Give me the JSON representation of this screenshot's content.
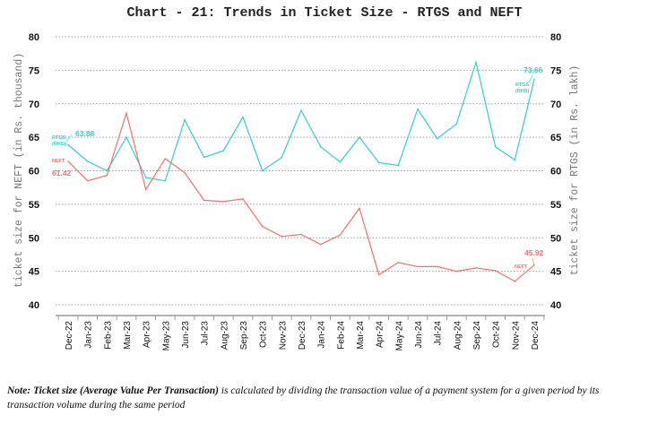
{
  "chart_data": {
    "type": "line",
    "title": "Chart - 21: Trends in Ticket Size - RTGS and NEFT",
    "ylabel_left": "ticket size for NEFT (in Rs. thousand)",
    "ylabel_right": "ticket size for RTGS (in Rs. lakh)",
    "xlabel": "",
    "ylim_left": [
      40,
      80
    ],
    "ylim_right": [
      40,
      80
    ],
    "yticks": [
      40,
      45,
      50,
      55,
      60,
      65,
      70,
      75,
      80
    ],
    "grid": true,
    "categories": [
      "Dec-22",
      "Jan-23",
      "Feb-23",
      "Mar-23",
      "Apr-23",
      "May-23",
      "Jun-23",
      "Jul-23",
      "Aug-23",
      "Sep-23",
      "Oct-23",
      "Nov-23",
      "Dec-23",
      "Jan-24",
      "Feb-24",
      "Mar-24",
      "Apr-24",
      "May-24",
      "Jun-24",
      "Jul-24",
      "Aug-24",
      "Sep-24",
      "Oct-24",
      "Nov-24",
      "Dec-24"
    ],
    "series": [
      {
        "name": "RTGS (RHS)",
        "axis": "right",
        "color": "#33cccc",
        "values": [
          63.88,
          61.4,
          60.0,
          65.0,
          59.0,
          58.5,
          67.6,
          62.0,
          63.0,
          68.0,
          60.0,
          62.0,
          69.0,
          63.6,
          61.3,
          65.0,
          61.2,
          60.8,
          69.2,
          64.8,
          67.0,
          76.2,
          63.6,
          61.6,
          73.66
        ],
        "start_label": "63.88",
        "end_label": "73.66",
        "series_label_lines": [
          "RTGS",
          "(RHS)"
        ]
      },
      {
        "name": "NEFT",
        "axis": "left",
        "color": "#f07070",
        "values": [
          61.42,
          58.5,
          59.3,
          68.6,
          57.2,
          61.8,
          59.7,
          55.6,
          55.4,
          55.8,
          51.7,
          50.2,
          50.5,
          49.0,
          50.4,
          54.4,
          44.5,
          46.3,
          45.7,
          45.7,
          45.0,
          45.5,
          45.1,
          43.5,
          45.92
        ],
        "start_label": "61.42",
        "end_label": "45.92",
        "series_label_lines": [
          "NEFT"
        ]
      }
    ]
  },
  "note": {
    "bold_part": "Note: Ticket size (Average Value Per Transaction)",
    "rest": " is calculated by dividing the transaction value of a payment system for a given period by its transaction volume during the same period"
  }
}
